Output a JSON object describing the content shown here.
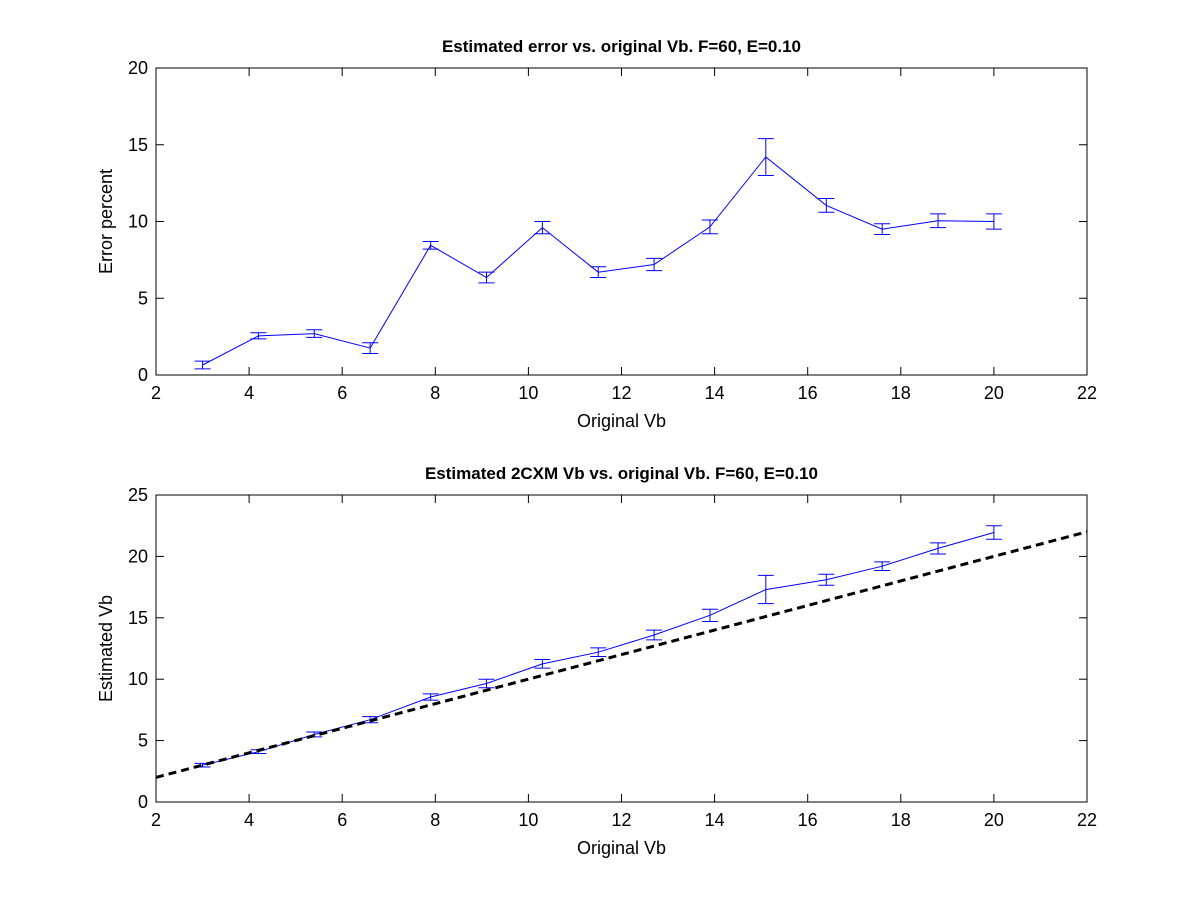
{
  "chart_data": [
    {
      "type": "line",
      "title": "Estimated error vs. original Vb. F=60, E=0.10",
      "xlabel": "Original Vb",
      "ylabel": "Error percent",
      "xlim": [
        2,
        22
      ],
      "ylim": [
        0,
        20
      ],
      "xticks": [
        2,
        4,
        6,
        8,
        10,
        12,
        14,
        16,
        18,
        20,
        22
      ],
      "yticks": [
        0,
        5,
        10,
        15,
        20
      ],
      "grid": false,
      "series": [
        {
          "color": "#0000ff",
          "x": [
            3.0,
            4.2,
            5.4,
            6.6,
            7.9,
            9.1,
            10.3,
            11.5,
            12.7,
            13.9,
            15.1,
            16.4,
            17.6,
            18.8,
            20.0
          ],
          "y": [
            0.65,
            2.55,
            2.7,
            1.75,
            8.45,
            6.35,
            9.6,
            6.7,
            7.2,
            9.65,
            14.2,
            11.05,
            9.5,
            10.05,
            10.0
          ],
          "error": [
            0.25,
            0.2,
            0.25,
            0.35,
            0.25,
            0.35,
            0.4,
            0.35,
            0.4,
            0.45,
            1.2,
            0.45,
            0.35,
            0.45,
            0.5
          ]
        }
      ]
    },
    {
      "type": "line",
      "title": "Estimated 2CXM Vb vs. original Vb. F=60, E=0.10",
      "xlabel": "Original Vb",
      "ylabel": "Estimated Vb",
      "xlim": [
        2,
        22
      ],
      "ylim": [
        0,
        25
      ],
      "xticks": [
        2,
        4,
        6,
        8,
        10,
        12,
        14,
        16,
        18,
        20,
        22
      ],
      "yticks": [
        0,
        5,
        10,
        15,
        20,
        25
      ],
      "grid": false,
      "series": [
        {
          "color": "#0000ff",
          "x": [
            3.0,
            4.2,
            5.4,
            6.6,
            7.9,
            9.1,
            10.3,
            11.5,
            12.7,
            13.9,
            15.1,
            16.4,
            17.6,
            18.8,
            20.0
          ],
          "y": [
            3.0,
            4.1,
            5.5,
            6.7,
            8.55,
            9.65,
            11.25,
            12.2,
            13.6,
            15.2,
            17.3,
            18.1,
            19.2,
            20.65,
            21.95
          ],
          "error": [
            0.15,
            0.15,
            0.2,
            0.25,
            0.25,
            0.35,
            0.35,
            0.35,
            0.4,
            0.5,
            1.15,
            0.45,
            0.35,
            0.45,
            0.55
          ]
        },
        {
          "color": "#000000",
          "style": "dashed",
          "x": [
            2,
            22
          ],
          "y": [
            2,
            22
          ]
        }
      ]
    }
  ]
}
